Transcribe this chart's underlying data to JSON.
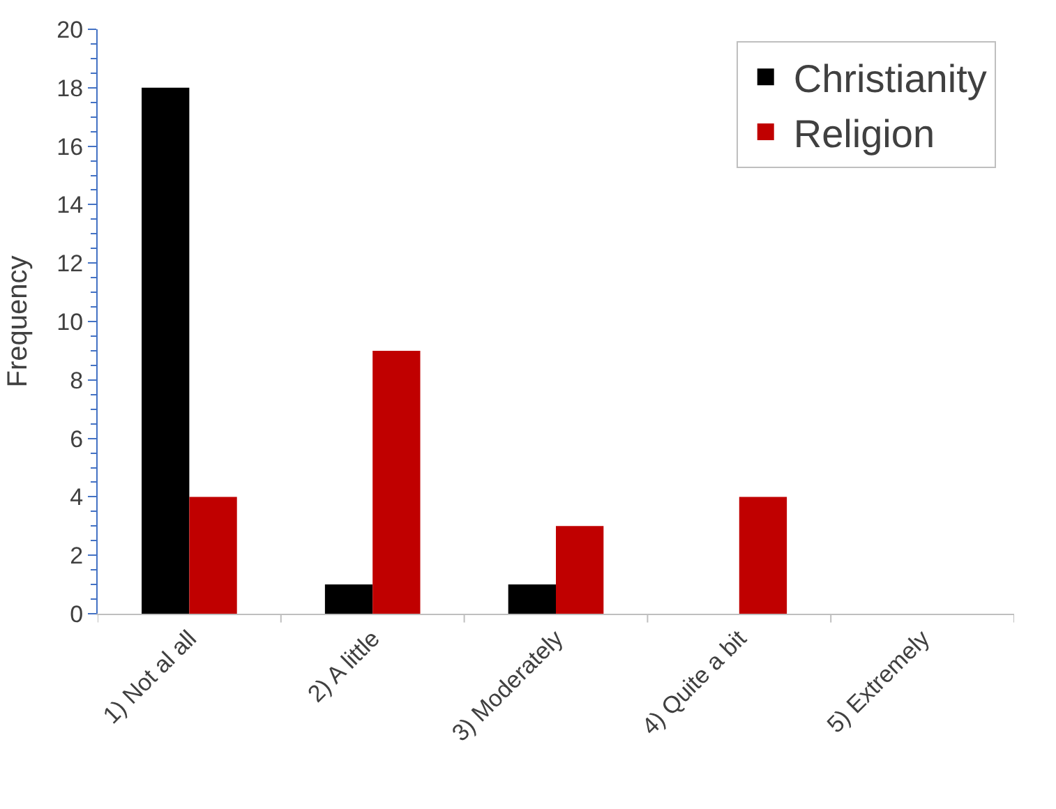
{
  "chart_data": {
    "type": "bar",
    "ylabel": "Frequency",
    "categories": [
      "1) Not al all",
      "2) A little",
      "3) Moderately",
      "4) Quite a bit",
      "5) Extremely"
    ],
    "series": [
      {
        "name": "Christianity",
        "color": "#000000",
        "values": [
          18,
          1,
          1,
          0,
          0
        ]
      },
      {
        "name": "Religion",
        "color": "#c00000",
        "values": [
          4,
          9,
          3,
          4,
          0
        ]
      }
    ],
    "ylim": [
      0,
      20
    ],
    "yticks": [
      0,
      2,
      4,
      6,
      8,
      10,
      12,
      14,
      16,
      18,
      20
    ],
    "legend": "top right"
  }
}
